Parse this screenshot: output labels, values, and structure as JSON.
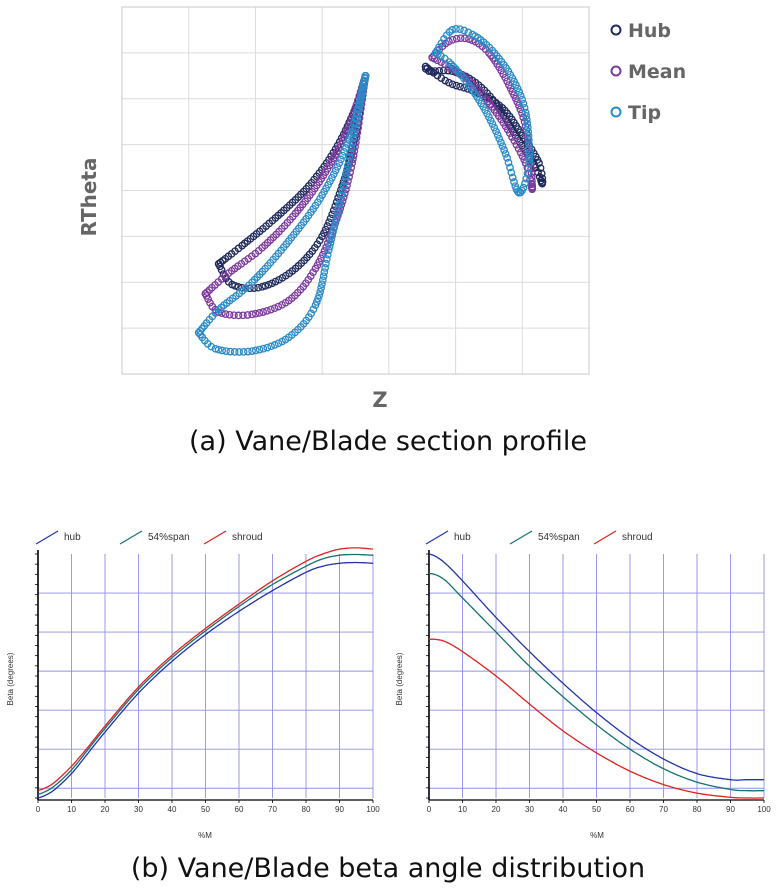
{
  "caption_a": "(a) Vane/Blade section profile",
  "caption_b": "(b) Vane/Blade beta angle distribution",
  "chart_data": [
    {
      "type": "scatter",
      "xlabel": "Z",
      "ylabel": "RTheta",
      "grid": true,
      "legend_position": "top-right",
      "xlim": [
        0,
        7
      ],
      "ylim": [
        0,
        8
      ],
      "series": [
        {
          "name": "Hub",
          "color": "#1f2a5c",
          "pressure": [
            [
              1.45,
              2.4
            ],
            [
              1.8,
              2.8
            ],
            [
              2.3,
              3.4
            ],
            [
              2.8,
              4.1
            ],
            [
              3.2,
              4.9
            ],
            [
              3.5,
              5.8
            ],
            [
              3.65,
              6.5
            ]
          ],
          "suction": [
            [
              1.45,
              2.4
            ],
            [
              1.65,
              1.95
            ],
            [
              2.1,
              1.9
            ],
            [
              2.6,
              2.3
            ],
            [
              3.0,
              3.0
            ],
            [
              3.3,
              4.1
            ],
            [
              3.5,
              5.2
            ],
            [
              3.65,
              6.5
            ]
          ],
          "fragment": [
            [
              4.55,
              6.7
            ],
            [
              4.9,
              6.35
            ],
            [
              5.3,
              6.15
            ],
            [
              5.7,
              5.8
            ],
            [
              6.0,
              5.2
            ],
            [
              6.25,
              4.6
            ],
            [
              6.3,
              4.15
            ],
            [
              6.2,
              4.5
            ],
            [
              5.9,
              5.2
            ],
            [
              5.6,
              5.9
            ],
            [
              5.3,
              6.35
            ],
            [
              4.95,
              6.6
            ],
            [
              4.6,
              6.6
            ],
            [
              4.55,
              6.7
            ]
          ]
        },
        {
          "name": "Mean",
          "color": "#7c3a9e",
          "pressure": [
            [
              1.25,
              1.75
            ],
            [
              1.6,
              2.2
            ],
            [
              2.1,
              2.75
            ],
            [
              2.6,
              3.5
            ],
            [
              3.05,
              4.4
            ],
            [
              3.4,
              5.4
            ],
            [
              3.65,
              6.5
            ]
          ],
          "suction": [
            [
              1.25,
              1.75
            ],
            [
              1.45,
              1.35
            ],
            [
              1.95,
              1.3
            ],
            [
              2.5,
              1.6
            ],
            [
              2.9,
              2.3
            ],
            [
              3.2,
              3.3
            ],
            [
              3.45,
              4.6
            ],
            [
              3.65,
              6.5
            ]
          ],
          "fragment": [
            [
              4.65,
              6.9
            ],
            [
              4.9,
              7.25
            ],
            [
              5.2,
              7.3
            ],
            [
              5.5,
              7.0
            ],
            [
              5.8,
              6.3
            ],
            [
              6.05,
              5.4
            ],
            [
              6.15,
              4.05
            ],
            [
              6.05,
              4.6
            ],
            [
              5.75,
              5.4
            ],
            [
              5.45,
              6.0
            ],
            [
              5.2,
              6.4
            ],
            [
              4.9,
              6.7
            ],
            [
              4.65,
              6.9
            ]
          ]
        },
        {
          "name": "Tip",
          "color": "#2a8bc8",
          "pressure": [
            [
              1.15,
              0.9
            ],
            [
              1.45,
              1.4
            ],
            [
              1.95,
              2.0
            ],
            [
              2.5,
              2.9
            ],
            [
              3.0,
              3.9
            ],
            [
              3.4,
              5.1
            ],
            [
              3.65,
              6.5
            ]
          ],
          "suction": [
            [
              1.15,
              0.9
            ],
            [
              1.4,
              0.55
            ],
            [
              1.95,
              0.5
            ],
            [
              2.5,
              0.8
            ],
            [
              2.9,
              1.5
            ],
            [
              3.1,
              2.7
            ],
            [
              3.35,
              4.3
            ],
            [
              3.65,
              6.5
            ]
          ],
          "fragment": [
            [
              4.7,
              7.0
            ],
            [
              4.95,
              7.5
            ],
            [
              5.25,
              7.4
            ],
            [
              5.55,
              7.05
            ],
            [
              5.85,
              6.45
            ],
            [
              6.05,
              5.7
            ],
            [
              6.1,
              4.6
            ],
            [
              5.95,
              3.95
            ],
            [
              5.75,
              4.8
            ],
            [
              5.5,
              5.6
            ],
            [
              5.2,
              6.3
            ],
            [
              4.9,
              6.8
            ],
            [
              4.7,
              7.0
            ]
          ]
        }
      ]
    },
    {
      "type": "line",
      "xlabel": "%M",
      "ylabel": "Beta (degrees)",
      "xlim": [
        0,
        100
      ],
      "ylim": [
        0,
        10
      ],
      "x_ticks": [
        "0",
        "10",
        "20",
        "30",
        "40",
        "50",
        "60",
        "70",
        "80",
        "90",
        "100"
      ],
      "grid": true,
      "legend_position": "top",
      "series": [
        {
          "name": "hub",
          "color": "#2233aa",
          "x": [
            0,
            2,
            5,
            10,
            15,
            20,
            30,
            40,
            50,
            60,
            70,
            80,
            85,
            90,
            95,
            100
          ],
          "y": [
            0.0,
            0.1,
            0.35,
            1.0,
            1.85,
            2.7,
            4.3,
            5.6,
            6.7,
            7.65,
            8.5,
            9.25,
            9.5,
            9.62,
            9.65,
            9.62
          ]
        },
        {
          "name": "54%span",
          "color": "#157070",
          "x": [
            0,
            2,
            5,
            10,
            15,
            20,
            30,
            40,
            50,
            60,
            70,
            80,
            85,
            90,
            95,
            100
          ],
          "y": [
            0.15,
            0.25,
            0.5,
            1.15,
            2.0,
            2.85,
            4.45,
            5.75,
            6.85,
            7.85,
            8.75,
            9.5,
            9.8,
            9.95,
            9.98,
            9.95
          ]
        },
        {
          "name": "shroud",
          "color": "#e02020",
          "x": [
            0,
            2,
            5,
            10,
            15,
            20,
            30,
            40,
            50,
            60,
            70,
            80,
            85,
            90,
            95,
            100
          ],
          "y": [
            0.3,
            0.4,
            0.65,
            1.3,
            2.1,
            2.95,
            4.55,
            5.85,
            6.95,
            7.95,
            8.9,
            9.7,
            10.0,
            10.2,
            10.25,
            10.2
          ]
        }
      ]
    },
    {
      "type": "line",
      "xlabel": "%M",
      "ylabel": "Beta (degrees)",
      "xlim": [
        0,
        100
      ],
      "ylim": [
        0,
        10
      ],
      "x_ticks": [
        "0",
        "10",
        "20",
        "30",
        "40",
        "50",
        "60",
        "70",
        "80",
        "90",
        "100"
      ],
      "grid": true,
      "legend_position": "top",
      "series": [
        {
          "name": "hub",
          "color": "#2233aa",
          "x": [
            0,
            2,
            5,
            10,
            20,
            30,
            40,
            50,
            60,
            70,
            80,
            90,
            95,
            100
          ],
          "y": [
            10.0,
            9.9,
            9.6,
            8.9,
            7.4,
            6.0,
            4.7,
            3.5,
            2.45,
            1.6,
            1.0,
            0.75,
            0.75,
            0.75
          ]
        },
        {
          "name": "54%span",
          "color": "#157070",
          "x": [
            0,
            2,
            5,
            10,
            20,
            30,
            40,
            50,
            60,
            70,
            80,
            90,
            95,
            100
          ],
          "y": [
            9.2,
            9.15,
            8.9,
            8.2,
            6.8,
            5.4,
            4.15,
            3.0,
            2.0,
            1.2,
            0.65,
            0.35,
            0.3,
            0.3
          ]
        },
        {
          "name": "shroud",
          "color": "#e02020",
          "x": [
            0,
            2,
            5,
            10,
            20,
            30,
            40,
            50,
            60,
            70,
            80,
            90,
            95,
            100
          ],
          "y": [
            6.5,
            6.5,
            6.4,
            6.0,
            5.0,
            3.85,
            2.75,
            1.85,
            1.1,
            0.55,
            0.2,
            0.03,
            0.0,
            0.0
          ]
        }
      ]
    }
  ]
}
